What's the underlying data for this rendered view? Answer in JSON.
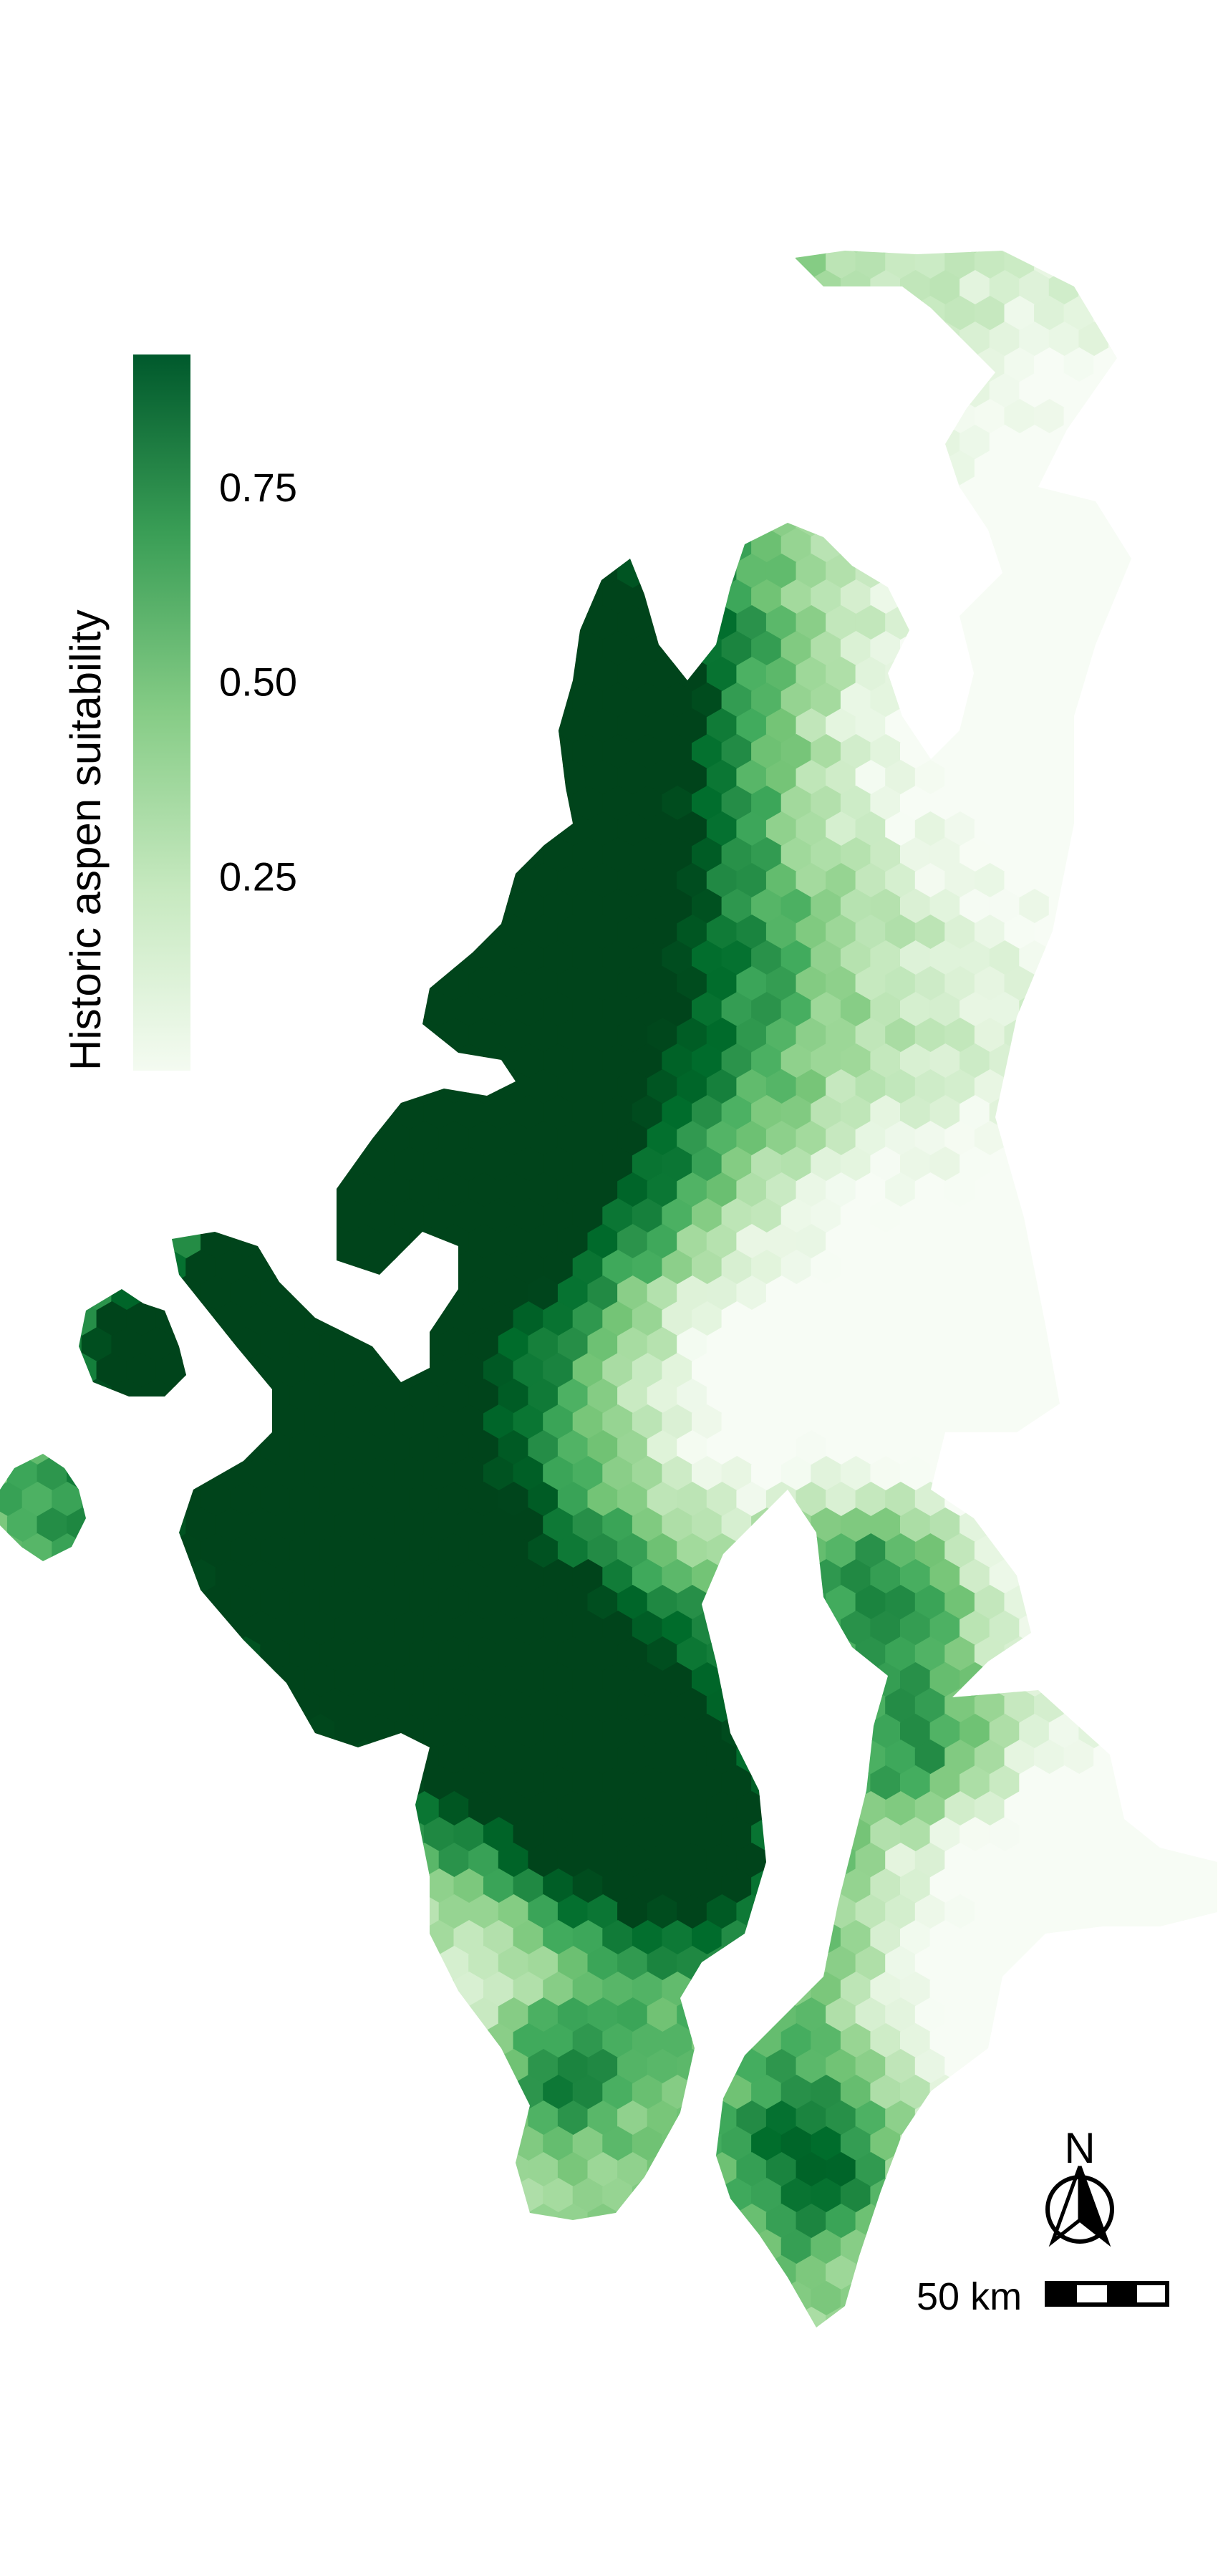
{
  "legend": {
    "title": "Historic aspen suitability",
    "min": 0.0,
    "max": 0.92,
    "ticks": [
      {
        "value": 0.75,
        "label": "0.75"
      },
      {
        "value": 0.5,
        "label": "0.50"
      },
      {
        "value": 0.25,
        "label": "0.25"
      }
    ],
    "color_low": "#f4fbf1",
    "color_mid": "#74c476",
    "color_high": "#00592c"
  },
  "north_arrow": {
    "label": "N"
  },
  "scale_bar": {
    "label": "50 km",
    "segments": 4
  },
  "colors": {
    "ramp": [
      "#f7fcf5",
      "#e5f5e0",
      "#c7e9c0",
      "#a1d99b",
      "#74c476",
      "#41ab5d",
      "#238b45",
      "#006d2c",
      "#00441b"
    ]
  }
}
